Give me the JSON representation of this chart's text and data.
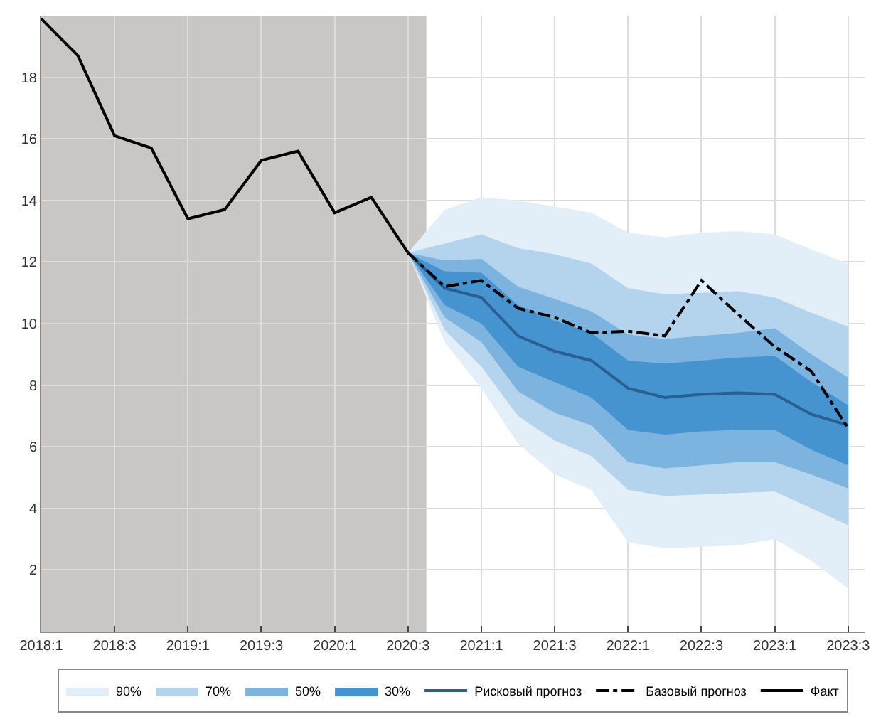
{
  "chart_data": {
    "type": "line",
    "categories": [
      "2018:1",
      null,
      "2018:3",
      null,
      "2019:1",
      null,
      "2019:3",
      null,
      "2020:1",
      null,
      "2020:3",
      null,
      "2021:1",
      null,
      "2021:3",
      null,
      "2022:1",
      null,
      "2022:3",
      null,
      "2023:1",
      null,
      "2023:3"
    ],
    "ylim": [
      0,
      20
    ],
    "yticks": [
      2,
      4,
      6,
      8,
      10,
      12,
      14,
      16,
      18
    ],
    "grid": true,
    "legend": "bottom",
    "bands": [
      {
        "axis": "x",
        "from": "2018:1",
        "to": "2020:3",
        "color": "#c9c7c5"
      }
    ],
    "series": [
      {
        "name": "90%",
        "type": "area",
        "color": "#e2eef8",
        "values": [
          null,
          null,
          null,
          null,
          null,
          null,
          null,
          null,
          null,
          null,
          null,
          null,
          null,
          null,
          null,
          null,
          null,
          null,
          null,
          null,
          null,
          null,
          null
        ],
        "lower": [
          null,
          null,
          null,
          null,
          null,
          null,
          null,
          null,
          null,
          null,
          12.3,
          9.4,
          7.9,
          6.1,
          5.1,
          4.6,
          2.9,
          2.7,
          2.75,
          2.8,
          3.0,
          2.3,
          1.4
        ],
        "upper": [
          null,
          null,
          null,
          null,
          null,
          null,
          null,
          null,
          null,
          null,
          12.3,
          13.7,
          14.1,
          14.0,
          13.8,
          13.6,
          12.95,
          12.8,
          12.95,
          13.0,
          12.9,
          12.4,
          11.95
        ]
      },
      {
        "name": "70%",
        "type": "area",
        "color": "#b4d4ed",
        "values": [
          null,
          null,
          null,
          null,
          null,
          null,
          null,
          null,
          null,
          null,
          null,
          null,
          null,
          null,
          null,
          null,
          null,
          null,
          null,
          null,
          null,
          null,
          null
        ],
        "lower": [
          null,
          null,
          null,
          null,
          null,
          null,
          null,
          null,
          null,
          null,
          12.3,
          9.8,
          8.6,
          7.0,
          6.2,
          5.7,
          4.6,
          4.4,
          4.45,
          4.5,
          4.55,
          4.0,
          3.45
        ],
        "upper": [
          null,
          null,
          null,
          null,
          null,
          null,
          null,
          null,
          null,
          null,
          12.3,
          12.6,
          12.9,
          12.45,
          12.25,
          11.95,
          11.15,
          10.95,
          11.0,
          11.05,
          10.85,
          10.35,
          9.9
        ]
      },
      {
        "name": "50%",
        "type": "area",
        "color": "#7cb4df",
        "values": [
          null,
          null,
          null,
          null,
          null,
          null,
          null,
          null,
          null,
          null,
          null,
          null,
          null,
          null,
          null,
          null,
          null,
          null,
          null,
          null,
          null,
          null,
          null
        ],
        "lower": [
          null,
          null,
          null,
          null,
          null,
          null,
          null,
          null,
          null,
          null,
          12.3,
          10.2,
          9.4,
          7.8,
          7.1,
          6.7,
          5.5,
          5.3,
          5.4,
          5.5,
          5.5,
          5.1,
          4.65
        ],
        "upper": [
          null,
          null,
          null,
          null,
          null,
          null,
          null,
          null,
          null,
          null,
          12.3,
          12.05,
          12.1,
          11.2,
          10.8,
          10.4,
          9.65,
          9.5,
          9.6,
          9.7,
          9.85,
          9.0,
          8.25
        ]
      },
      {
        "name": "30%",
        "type": "area",
        "color": "#4594d0",
        "values": [
          null,
          null,
          null,
          null,
          null,
          null,
          null,
          null,
          null,
          null,
          null,
          null,
          null,
          null,
          null,
          null,
          null,
          null,
          null,
          null,
          null,
          null,
          null
        ],
        "lower": [
          null,
          null,
          null,
          null,
          null,
          null,
          null,
          null,
          null,
          null,
          12.3,
          10.6,
          10.0,
          8.6,
          8.1,
          7.6,
          6.55,
          6.4,
          6.5,
          6.55,
          6.55,
          5.9,
          5.4
        ],
        "upper": [
          null,
          null,
          null,
          null,
          null,
          null,
          null,
          null,
          null,
          null,
          12.3,
          11.7,
          11.65,
          10.6,
          10.1,
          9.7,
          8.8,
          8.7,
          8.8,
          8.9,
          8.95,
          8.1,
          7.35
        ]
      },
      {
        "name": "Рисковый прогноз",
        "color": "#2b5f91",
        "line_style": "solid",
        "values": [
          null,
          null,
          null,
          null,
          null,
          null,
          null,
          null,
          null,
          null,
          12.3,
          11.15,
          10.85,
          9.6,
          9.1,
          8.8,
          7.9,
          7.6,
          7.7,
          7.75,
          7.7,
          7.05,
          6.7
        ]
      },
      {
        "name": "Базовый прогноз",
        "color": "#000000",
        "line_style": "dashed",
        "values": [
          null,
          null,
          null,
          null,
          null,
          null,
          null,
          null,
          null,
          null,
          12.3,
          11.2,
          11.4,
          10.5,
          10.2,
          9.7,
          9.75,
          9.6,
          11.4,
          10.3,
          9.25,
          8.45,
          6.6
        ]
      },
      {
        "name": "Факт",
        "color": "#000000",
        "line_style": "solid",
        "values": [
          19.9,
          18.7,
          16.1,
          15.7,
          13.4,
          13.7,
          15.3,
          15.6,
          13.6,
          14.1,
          12.3,
          null,
          null,
          null,
          null,
          null,
          null,
          null,
          null,
          null,
          null,
          null,
          null
        ]
      }
    ]
  }
}
